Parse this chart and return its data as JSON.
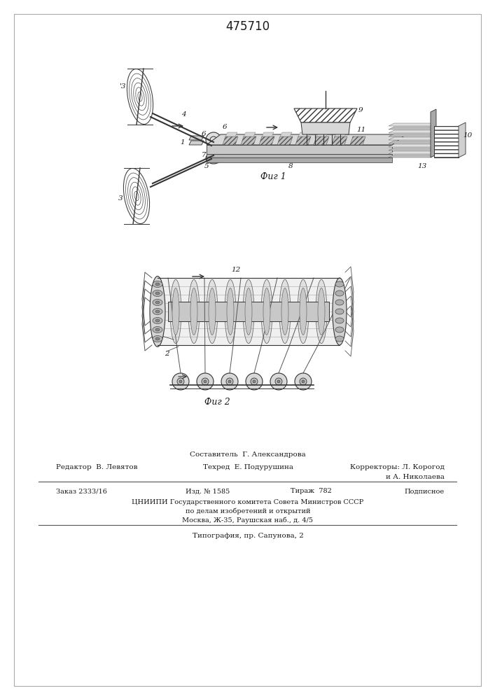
{
  "title": "475710",
  "fig1_caption": "Фиг 1",
  "fig2_caption": "Фиг 2",
  "footer_sestavitel": "Составитель  Г. Александрова",
  "footer_redaktor": "Редактор  В. Левятов",
  "footer_tehred": "Техред  Е. Подурушина",
  "footer_korrektory": "Корректоры: Л. Корогод",
  "footer_korrektory2": "и А. Николаева",
  "footer_zakaz": "Заказ 2333/16",
  "footer_izd": "Изд. № 1585",
  "footer_tirazh": "Тираж  782",
  "footer_podpisnoe": "Подписное",
  "footer_cniip1": "ЦНИИПИ Государственного комитета Совета Министров СССР",
  "footer_cniip2": "по делам изобретений и открытий",
  "footer_cniip3": "Москва, Ж-35, Раушская наб., д. 4/5",
  "footer_tipografia": "Типография, пр. Сапунова, 2",
  "bg_color": "#ffffff",
  "text_color": "#1a1a1a",
  "line_color": "#333333"
}
